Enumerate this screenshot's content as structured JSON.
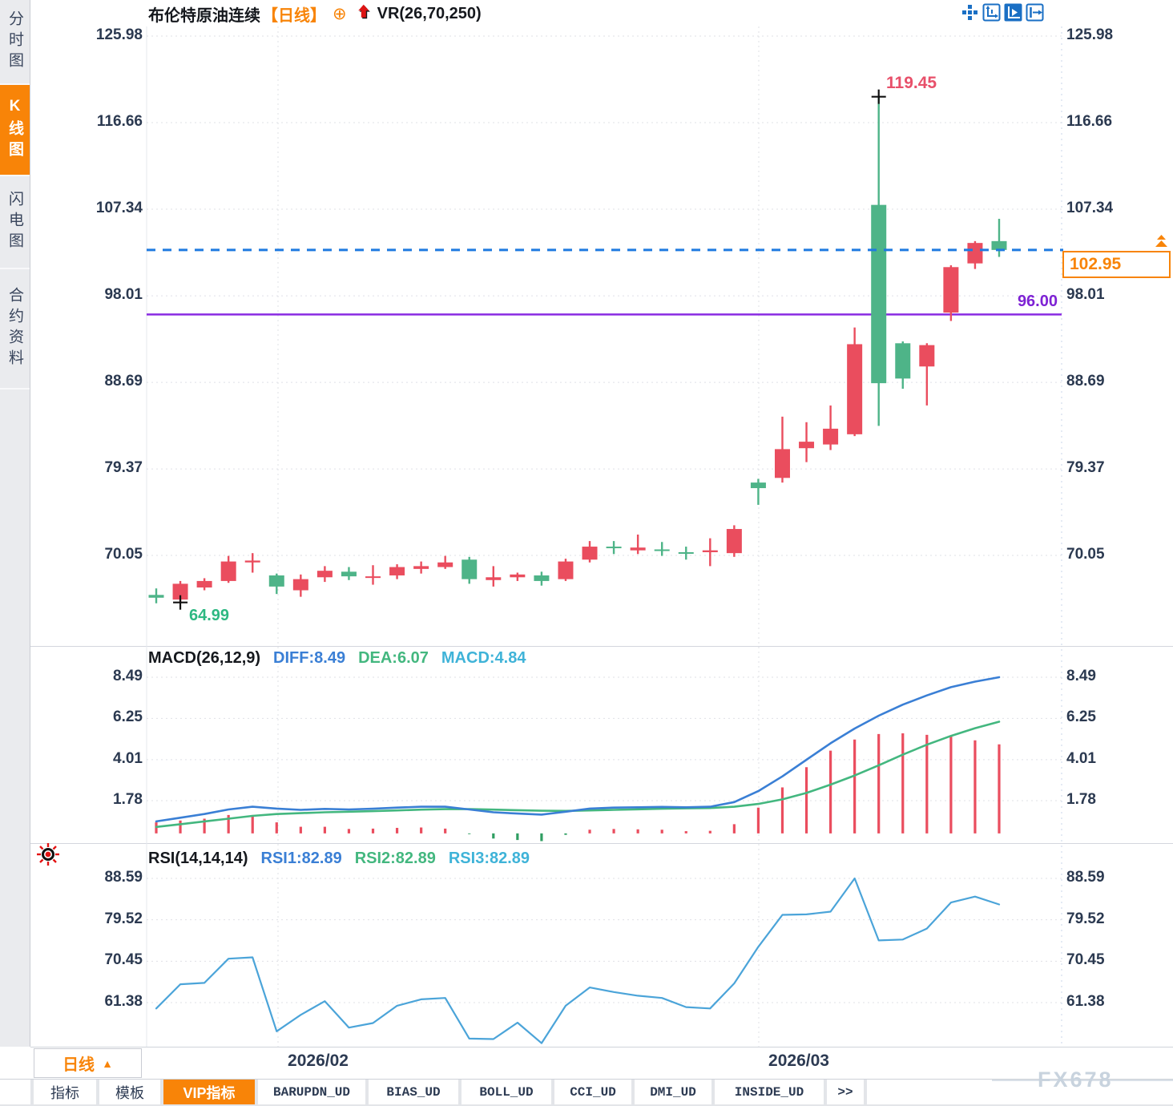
{
  "sidebar": {
    "tabs": [
      {
        "label": "分时图",
        "active": false
      },
      {
        "label": "K线图",
        "active": true
      },
      {
        "label": "闪电图",
        "active": false
      },
      {
        "label": "合约资料",
        "active": false
      }
    ]
  },
  "header": {
    "symbol": "布伦特原油连续",
    "period_tag": "【日线】",
    "attach_icon": "⊕",
    "overlay_indicator": "VR(26,70,250)",
    "toolbar_icons": [
      "pan-crosshair-icon",
      "axis-range-icon",
      "auto-scale-icon",
      "collapse-panel-icon"
    ]
  },
  "colors": {
    "up": "#ea4d5e",
    "down": "#4eb488",
    "accent_orange": "#f88408",
    "line_purple": "#8a2be2",
    "dashed_blue": "#1f7ae0",
    "diff_blue": "#3a7fd5",
    "dea_green": "#43b77f",
    "macd_cyan": "#3fb3d8",
    "rsi_blue": "#4ba4d9",
    "hist_neg": "#2f9e62",
    "axis_text": "#2b3950",
    "grid": "#dfe0e6"
  },
  "chart_data": [
    {
      "id": "price",
      "type": "candlestick",
      "title": "布伦特原油连续 日线",
      "y_ticks": [
        125.98,
        116.66,
        107.34,
        98.01,
        88.69,
        79.37,
        70.05
      ],
      "x_tick_labels": [
        "2026/02",
        "2026/03"
      ],
      "candles": [
        [
          65.8,
          66.5,
          64.9,
          65.5
        ],
        [
          65.3,
          67.3,
          64.99,
          67.0
        ],
        [
          66.6,
          67.6,
          66.3,
          67.3
        ],
        [
          67.3,
          70.0,
          67.1,
          69.4
        ],
        [
          69.3,
          70.3,
          68.2,
          69.5
        ],
        [
          67.9,
          68.1,
          65.9,
          66.7
        ],
        [
          66.3,
          68.0,
          65.6,
          67.5
        ],
        [
          67.7,
          68.9,
          67.2,
          68.4
        ],
        [
          68.3,
          68.8,
          67.4,
          67.8
        ],
        [
          67.7,
          69.0,
          66.9,
          67.8
        ],
        [
          67.9,
          69.1,
          67.5,
          68.8
        ],
        [
          68.6,
          69.4,
          68.1,
          68.9
        ],
        [
          68.8,
          70.0,
          68.6,
          69.3
        ],
        [
          69.6,
          69.9,
          67.0,
          67.5
        ],
        [
          67.4,
          68.9,
          66.7,
          67.7
        ],
        [
          67.7,
          68.2,
          67.3,
          68.0
        ],
        [
          67.9,
          68.3,
          66.8,
          67.3
        ],
        [
          67.5,
          69.7,
          67.3,
          69.4
        ],
        [
          69.6,
          71.6,
          69.3,
          71.0
        ],
        [
          71.0,
          71.6,
          70.2,
          70.9
        ],
        [
          70.6,
          72.3,
          70.2,
          70.9
        ],
        [
          70.7,
          71.5,
          70.0,
          70.6
        ],
        [
          70.4,
          71.0,
          69.6,
          70.3
        ],
        [
          70.4,
          71.9,
          68.9,
          70.6
        ],
        [
          70.3,
          73.3,
          69.9,
          72.9
        ],
        [
          77.9,
          78.3,
          75.5,
          77.3
        ],
        [
          78.4,
          85.0,
          77.9,
          81.5
        ],
        [
          81.6,
          84.4,
          80.1,
          82.3
        ],
        [
          82.0,
          86.2,
          81.4,
          83.7
        ],
        [
          83.1,
          94.6,
          82.9,
          92.8
        ],
        [
          107.8,
          119.45,
          84.0,
          88.6
        ],
        [
          92.9,
          93.1,
          88.0,
          89.1
        ],
        [
          90.4,
          92.9,
          86.2,
          92.7
        ],
        [
          96.2,
          101.3,
          95.3,
          101.1
        ],
        [
          101.5,
          103.9,
          100.9,
          103.7
        ],
        [
          103.9,
          106.3,
          102.2,
          102.95
        ]
      ],
      "annotations": {
        "high_label": "119.45",
        "high_value": 119.45,
        "high_index": 30,
        "low_label": "64.99",
        "low_value": 64.99,
        "low_index": 1,
        "hline_label": "96.00",
        "hline_value": 96.0,
        "last_price_label": "102.95",
        "last_price_value": 102.95
      }
    },
    {
      "id": "macd",
      "type": "macd",
      "title": "MACD(26,12,9)",
      "value_labels": [
        "DIFF:8.49",
        "DEA:6.07",
        "MACD:4.84"
      ],
      "y_ticks": [
        8.49,
        6.25,
        4.01,
        1.78
      ],
      "diff": [
        0.65,
        0.85,
        1.05,
        1.3,
        1.45,
        1.35,
        1.28,
        1.33,
        1.3,
        1.34,
        1.4,
        1.45,
        1.45,
        1.3,
        1.15,
        1.08,
        1.02,
        1.18,
        1.35,
        1.4,
        1.42,
        1.44,
        1.42,
        1.45,
        1.7,
        2.3,
        3.1,
        4.0,
        4.9,
        5.7,
        6.4,
        7.0,
        7.5,
        7.95,
        8.25,
        8.49
      ],
      "dea": [
        0.35,
        0.5,
        0.65,
        0.8,
        0.95,
        1.05,
        1.1,
        1.15,
        1.18,
        1.21,
        1.25,
        1.29,
        1.32,
        1.32,
        1.29,
        1.26,
        1.23,
        1.22,
        1.25,
        1.28,
        1.31,
        1.34,
        1.36,
        1.38,
        1.45,
        1.6,
        1.85,
        2.2,
        2.65,
        3.15,
        3.7,
        4.28,
        4.82,
        5.3,
        5.72,
        6.07
      ],
      "hist": [
        0.6,
        0.7,
        0.8,
        1.0,
        1.0,
        0.6,
        0.36,
        0.36,
        0.24,
        0.26,
        0.3,
        0.32,
        0.26,
        -0.04,
        -0.28,
        -0.36,
        -0.42,
        -0.08,
        0.2,
        0.24,
        0.22,
        0.2,
        0.12,
        0.14,
        0.5,
        1.4,
        2.5,
        3.6,
        4.5,
        5.1,
        5.4,
        5.44,
        5.36,
        5.3,
        5.06,
        4.84
      ]
    },
    {
      "id": "rsi",
      "type": "line",
      "title": "RSI(14,14,14)",
      "value_labels": [
        "RSI1:82.89",
        "RSI2:82.89",
        "RSI3:82.89"
      ],
      "y_ticks": [
        88.59,
        79.52,
        70.45,
        61.38
      ],
      "values": [
        60.1,
        65.4,
        65.7,
        71.0,
        71.3,
        55.1,
        58.7,
        61.7,
        55.9,
        56.9,
        60.7,
        62.1,
        62.4,
        53.5,
        53.4,
        57.0,
        52.5,
        60.7,
        64.7,
        63.7,
        62.9,
        62.4,
        60.4,
        60.1,
        65.6,
        73.6,
        80.6,
        80.7,
        81.3,
        88.59,
        75.0,
        75.2,
        77.6,
        83.3,
        84.6,
        82.89
      ]
    }
  ],
  "xaxis": {
    "labels": [
      "2026/02",
      "2026/03"
    ],
    "period_label": "日线",
    "period_arrow": "▲"
  },
  "bottom_tabs": [
    {
      "label": "指标",
      "active": false
    },
    {
      "label": "模板",
      "active": false
    },
    {
      "label": "VIP指标",
      "active": true
    },
    {
      "label": "BARUPDN_UD",
      "active": false
    },
    {
      "label": "BIAS_UD",
      "active": false
    },
    {
      "label": "BOLL_UD",
      "active": false
    },
    {
      "label": "CCI_UD",
      "active": false
    },
    {
      "label": "DMI_UD",
      "active": false
    },
    {
      "label": "INSIDE_UD",
      "active": false
    },
    {
      "label": ">>",
      "active": false
    }
  ],
  "watermark": "FX678"
}
